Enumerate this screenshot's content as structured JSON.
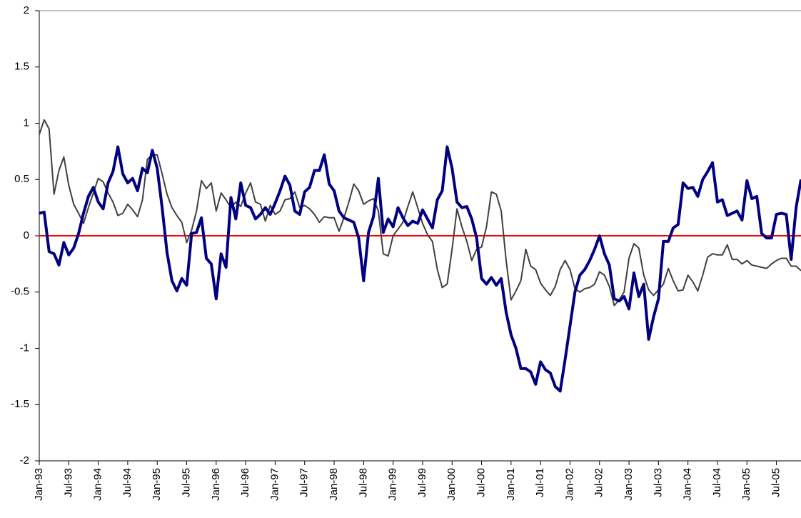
{
  "chart_data": {
    "type": "line",
    "categories": [
      "Jan-93",
      null,
      null,
      null,
      null,
      null,
      "Jul-93",
      null,
      null,
      null,
      null,
      null,
      "Jan-94",
      null,
      null,
      null,
      null,
      null,
      "Jul-94",
      null,
      null,
      null,
      null,
      null,
      "Jan-95",
      null,
      null,
      null,
      null,
      null,
      "Jul-95",
      null,
      null,
      null,
      null,
      null,
      "Jan-96",
      null,
      null,
      null,
      null,
      null,
      "Jul-96",
      null,
      null,
      null,
      null,
      null,
      "Jan-97",
      null,
      null,
      null,
      null,
      null,
      "Jul-97",
      null,
      null,
      null,
      null,
      null,
      "Jan-98",
      null,
      null,
      null,
      null,
      null,
      "Jul-98",
      null,
      null,
      null,
      null,
      null,
      "Jan-99",
      null,
      null,
      null,
      null,
      null,
      "Jul-99",
      null,
      null,
      null,
      null,
      null,
      "Jan-00",
      null,
      null,
      null,
      null,
      null,
      "Jul-00",
      null,
      null,
      null,
      null,
      null,
      "Jan-01",
      null,
      null,
      null,
      null,
      null,
      "Jul-01",
      null,
      null,
      null,
      null,
      null,
      "Jan-02",
      null,
      null,
      null,
      null,
      null,
      "Jul-02",
      null,
      null,
      null,
      null,
      null,
      "Jan-03",
      null,
      null,
      null,
      null,
      null,
      "Jul-03",
      null,
      null,
      null,
      null,
      null,
      "Jan-04",
      null,
      null,
      null,
      null,
      null,
      "Jul-04",
      null,
      null,
      null,
      null,
      null,
      "Jan-05",
      null,
      null,
      null,
      null,
      null,
      "Jul-05",
      null,
      null,
      null,
      null,
      null
    ],
    "series": [
      {
        "color": "#000080",
        "width": 4,
        "values": [
          0.2,
          0.21,
          -0.14,
          -0.16,
          -0.26,
          -0.06,
          -0.17,
          -0.11,
          0.02,
          0.2,
          0.35,
          0.43,
          0.3,
          0.24,
          0.47,
          0.57,
          0.79,
          0.55,
          0.47,
          0.51,
          0.4,
          0.6,
          0.56,
          0.76,
          0.6,
          0.25,
          -0.15,
          -0.4,
          -0.49,
          -0.38,
          -0.44,
          0.02,
          0.03,
          0.16,
          -0.2,
          -0.25,
          -0.56,
          -0.16,
          -0.28,
          0.34,
          0.15,
          0.47,
          0.27,
          0.25,
          0.15,
          0.19,
          0.25,
          0.19,
          0.29,
          0.4,
          0.53,
          0.45,
          0.22,
          0.19,
          0.39,
          0.43,
          0.58,
          0.58,
          0.72,
          0.46,
          0.4,
          0.22,
          0.16,
          0.14,
          0.12,
          -0.02,
          -0.4,
          0.03,
          0.17,
          0.51,
          0.03,
          0.15,
          0.08,
          0.25,
          0.16,
          0.09,
          0.13,
          0.11,
          0.23,
          0.15,
          0.07,
          0.32,
          0.4,
          0.79,
          0.6,
          0.3,
          0.25,
          0.26,
          0.15,
          -0.02,
          -0.38,
          -0.43,
          -0.37,
          -0.44,
          -0.38,
          -0.68,
          -0.88,
          -1.0,
          -1.18,
          -1.18,
          -1.21,
          -1.32,
          -1.12,
          -1.19,
          -1.22,
          -1.34,
          -1.38,
          -1.1,
          -0.8,
          -0.5,
          -0.35,
          -0.3,
          -0.22,
          -0.12,
          0.0,
          -0.16,
          -0.26,
          -0.56,
          -0.58,
          -0.54,
          -0.65,
          -0.33,
          -0.54,
          -0.43,
          -0.92,
          -0.72,
          -0.56,
          -0.05,
          -0.05,
          0.07,
          0.1,
          0.47,
          0.42,
          0.43,
          0.35,
          0.5,
          0.57,
          0.65,
          0.3,
          0.32,
          0.18,
          0.2,
          0.22,
          0.14,
          0.49,
          0.33,
          0.35,
          0.02,
          -0.02,
          -0.02,
          0.19,
          0.2,
          0.19,
          -0.21,
          0.25,
          0.5
        ]
      },
      {
        "color": "#404040",
        "width": 2,
        "values": [
          0.9,
          1.03,
          0.95,
          0.37,
          0.58,
          0.7,
          0.45,
          0.28,
          0.2,
          0.11,
          0.25,
          0.38,
          0.51,
          0.48,
          0.38,
          0.3,
          0.18,
          0.2,
          0.28,
          0.23,
          0.17,
          0.32,
          0.68,
          0.72,
          0.72,
          0.55,
          0.37,
          0.25,
          0.18,
          0.12,
          -0.06,
          0.05,
          0.22,
          0.49,
          0.42,
          0.47,
          0.22,
          0.38,
          0.32,
          0.25,
          0.3,
          0.26,
          0.38,
          0.47,
          0.3,
          0.28,
          0.13,
          0.27,
          0.19,
          0.22,
          0.32,
          0.33,
          0.39,
          0.25,
          0.27,
          0.24,
          0.19,
          0.12,
          0.17,
          0.16,
          0.16,
          0.04,
          0.16,
          0.3,
          0.46,
          0.4,
          0.28,
          0.31,
          0.33,
          0.22,
          -0.16,
          -0.18,
          0.0,
          0.06,
          0.12,
          0.26,
          0.39,
          0.25,
          0.11,
          0.01,
          -0.05,
          -0.3,
          -0.46,
          -0.43,
          -0.12,
          0.24,
          0.08,
          -0.05,
          -0.22,
          -0.12,
          -0.1,
          0.08,
          0.39,
          0.37,
          0.22,
          -0.22,
          -0.57,
          -0.49,
          -0.4,
          -0.12,
          -0.27,
          -0.3,
          -0.42,
          -0.48,
          -0.53,
          -0.45,
          -0.3,
          -0.22,
          -0.3,
          -0.47,
          -0.5,
          -0.47,
          -0.46,
          -0.43,
          -0.32,
          -0.35,
          -0.45,
          -0.62,
          -0.57,
          -0.5,
          -0.2,
          -0.07,
          -0.11,
          -0.35,
          -0.48,
          -0.53,
          -0.48,
          -0.43,
          -0.29,
          -0.4,
          -0.49,
          -0.48,
          -0.35,
          -0.41,
          -0.49,
          -0.35,
          -0.19,
          -0.16,
          -0.17,
          -0.17,
          -0.08,
          -0.21,
          -0.21,
          -0.25,
          -0.22,
          -0.26,
          -0.27,
          -0.28,
          -0.29,
          -0.25,
          -0.22,
          -0.2,
          -0.2,
          -0.27,
          -0.27,
          -0.31
        ]
      }
    ],
    "reference_lines": [
      {
        "value": 0,
        "color": "#ff0000"
      }
    ],
    "ylim": [
      -2,
      2
    ],
    "yticks": [
      -2,
      -1.5,
      -1,
      -0.5,
      0,
      0.5,
      1,
      1.5,
      2
    ],
    "grid": false
  }
}
